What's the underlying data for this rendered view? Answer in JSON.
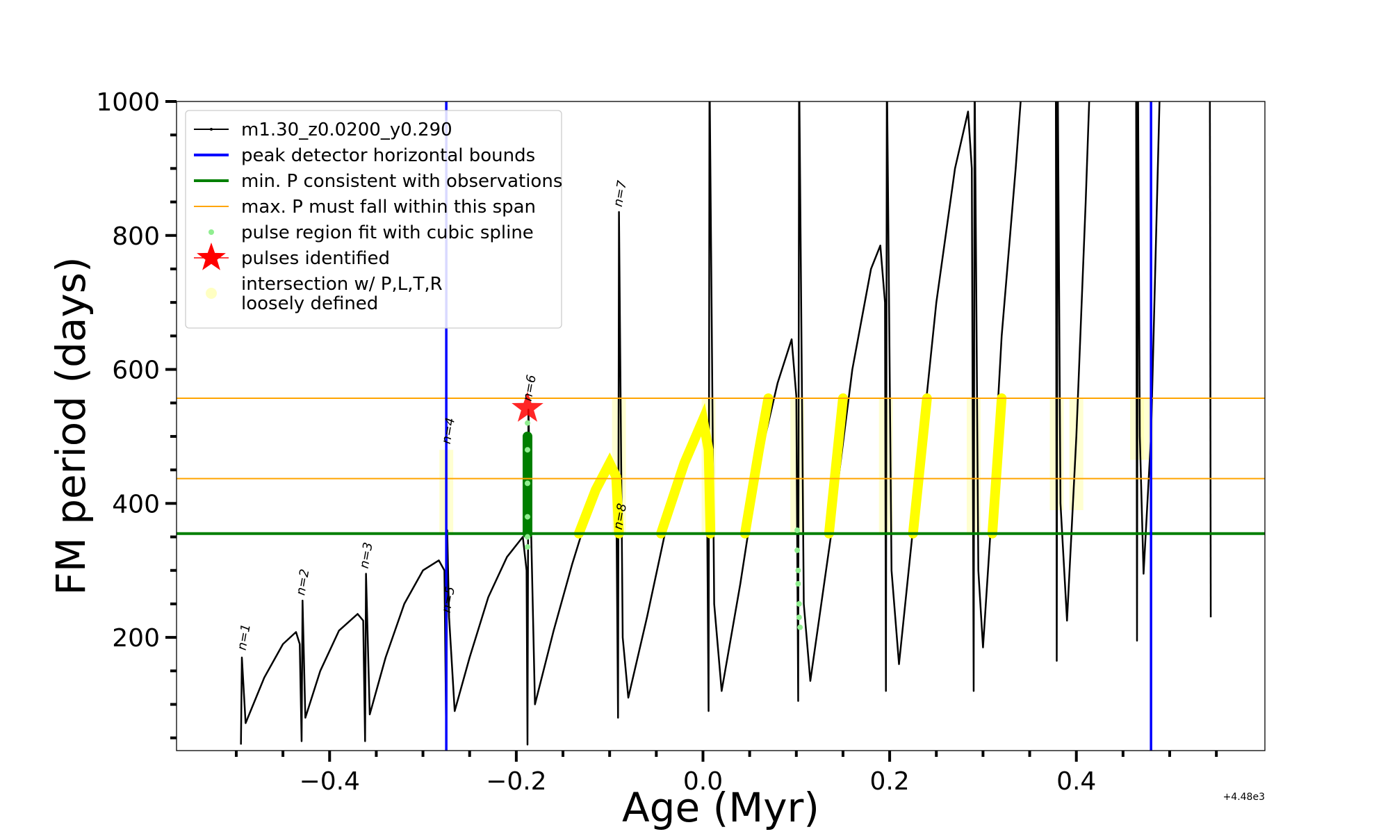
{
  "chart_data": {
    "type": "line",
    "xlabel": "Age (Myr)",
    "ylabel": "FM period (days)",
    "x_offset_label": "+4.48e3",
    "xlim": [
      -0.564,
      0.602
    ],
    "ylim": [
      31,
      1000
    ],
    "xticks": [
      {
        "value": -0.4,
        "label": "−0.4"
      },
      {
        "value": -0.2,
        "label": "−0.2"
      },
      {
        "value": 0,
        "label": "0.0"
      },
      0.2,
      0.4
    ],
    "yticks": [
      200,
      400,
      600,
      800,
      1000
    ],
    "xminorticks": [
      -0.5,
      -0.45,
      -0.35,
      -0.3,
      -0.25,
      -0.15,
      -0.1,
      -0.05,
      0.05,
      0.1,
      0.15,
      0.25,
      0.3,
      0.35,
      0.45,
      0.5,
      0.55
    ],
    "yminorticks": [
      50,
      100,
      150,
      250,
      300,
      350,
      450,
      500,
      550,
      650,
      700,
      750,
      850,
      900,
      950
    ],
    "legend": "upper left",
    "series": [
      {
        "name": "m1.30_z0.0200_y0.290",
        "kind": "line",
        "color": "#000000",
        "x": [
          -0.495,
          -0.494,
          -0.49,
          -0.47,
          -0.45,
          -0.436,
          -0.432,
          -0.43,
          -0.429,
          -0.426,
          -0.41,
          -0.39,
          -0.37,
          -0.364,
          -0.362,
          -0.361,
          -0.357,
          -0.34,
          -0.32,
          -0.3,
          -0.283,
          -0.277,
          -0.275,
          -0.274,
          -0.272,
          -0.266,
          -0.25,
          -0.23,
          -0.21,
          -0.193,
          -0.189,
          -0.188,
          -0.187,
          -0.18,
          -0.16,
          -0.14,
          -0.12,
          -0.1,
          -0.093,
          -0.091,
          -0.09,
          -0.086,
          -0.08,
          -0.06,
          -0.04,
          -0.02,
          -0.003,
          0.004,
          0.006,
          0.007,
          0.012,
          0.02,
          0.04,
          0.06,
          0.08,
          0.095,
          0.1,
          0.102,
          0.103,
          0.108,
          0.115,
          0.14,
          0.16,
          0.18,
          0.19,
          0.195,
          0.196,
          0.197,
          0.202,
          0.21,
          0.23,
          0.25,
          0.27,
          0.284,
          0.288,
          0.29,
          0.291,
          0.295,
          0.3,
          0.31,
          0.32,
          0.335,
          0.343,
          0.36,
          0.378,
          0.379,
          0.38,
          0.383,
          0.39,
          0.4,
          0.41,
          0.415,
          0.44,
          0.464,
          0.465,
          0.466,
          0.468,
          0.472,
          0.48,
          0.49,
          0.52,
          0.543,
          0.544
        ],
        "values": [
          40,
          170,
          72,
          140,
          190,
          208,
          190,
          45,
          255,
          80,
          150,
          210,
          235,
          225,
          45,
          295,
          85,
          170,
          250,
          300,
          315,
          300,
          45,
          360,
          230,
          90,
          170,
          260,
          320,
          350,
          300,
          40,
          540,
          100,
          210,
          310,
          400,
          460,
          440,
          80,
          835,
          200,
          110,
          230,
          360,
          460,
          525,
          470,
          90,
          1050,
          250,
          120,
          280,
          460,
          580,
          645,
          560,
          105,
          1050,
          250,
          135,
          380,
          600,
          750,
          785,
          700,
          120,
          1050,
          300,
          160,
          430,
          700,
          900,
          985,
          900,
          120,
          1050,
          300,
          185,
          400,
          650,
          900,
          1050,
          null,
          1050,
          165,
          1050,
          400,
          225,
          500,
          850,
          1050,
          null,
          1050,
          195,
          1050,
          500,
          295,
          500,
          1050,
          null,
          1050,
          230
        ]
      },
      {
        "name": "peak detector horizontal bounds",
        "kind": "vline",
        "color": "#0000ff",
        "x": [
          -0.275,
          0.48
        ]
      },
      {
        "name": "min. P consistent with observations",
        "kind": "hline",
        "color": "#007f00",
        "values": [
          355
        ]
      },
      {
        "name": "max. P must fall within this span",
        "kind": "hline",
        "color": "#ffa500",
        "values": [
          437,
          557
        ]
      },
      {
        "name": "pulse region fit with cubic spline",
        "kind": "scatter",
        "color": "#90ee90",
        "x": [
          -0.188,
          -0.188,
          -0.188,
          -0.188,
          -0.188,
          -0.188,
          0.101,
          0.101,
          0.102,
          0.102,
          0.103,
          0.103,
          0.104
        ],
        "values": [
          335,
          350,
          380,
          430,
          480,
          520,
          360,
          330,
          300,
          280,
          250,
          230,
          215
        ]
      },
      {
        "name": "pulses identified",
        "kind": "star",
        "color": "#ff0000",
        "x": [
          -0.188
        ],
        "values": [
          542
        ]
      },
      {
        "name": "intersection w/ P,L,T,R\nloosely defined",
        "kind": "band",
        "color": "#ffff99",
        "x": [
          -0.275,
          -0.275,
          -0.275,
          -0.09,
          -0.09,
          -0.09,
          0.006,
          0.006,
          0.006,
          0.101,
          0.101,
          0.101,
          0.196,
          0.196,
          0.196,
          0.29,
          0.29,
          0.29,
          0.379,
          0.379,
          0.379,
          0.4,
          0.4,
          0.4,
          0.465,
          0.465,
          0.465,
          0.475,
          0.475
        ],
        "values": [
          355,
          480,
          null,
          355,
          557,
          null,
          355,
          557,
          null,
          355,
          557,
          null,
          355,
          557,
          null,
          355,
          557,
          null,
          390,
          557,
          null,
          390,
          557,
          null,
          465,
          557,
          null,
          465,
          557
        ]
      },
      {
        "kind": "thick",
        "color": "#ffff00",
        "x": [
          -0.133,
          -0.115,
          -0.1,
          -0.093,
          -0.09,
          -0.09,
          -0.045,
          -0.02,
          0.0,
          0.006,
          0.008,
          0.008,
          0.045,
          0.06,
          0.07,
          0.07,
          0.135,
          0.15,
          0.15,
          0.225,
          0.24,
          0.24,
          0.31,
          0.32
        ],
        "values": [
          355,
          420,
          460,
          440,
          355,
          null,
          355,
          460,
          525,
          480,
          355,
          null,
          355,
          480,
          557,
          null,
          355,
          557,
          null,
          355,
          557,
          null,
          355,
          557
        ]
      },
      {
        "kind": "thick",
        "color": "#007f00",
        "x": [
          -0.188,
          -0.188
        ],
        "values": [
          355,
          500
        ]
      }
    ],
    "annotations": [
      {
        "text": "n=1",
        "x": -0.49,
        "y": 180
      },
      {
        "text": "n=2",
        "x": -0.427,
        "y": 262
      },
      {
        "text": "n=3",
        "x": -0.359,
        "y": 302
      },
      {
        "text": "n=4",
        "x": -0.271,
        "y": 488
      },
      {
        "text": "n=5",
        "x": -0.271,
        "y": 236
      },
      {
        "text": "n=6",
        "x": -0.184,
        "y": 552
      },
      {
        "text": "n=7",
        "x": -0.087,
        "y": 842
      },
      {
        "text": "n=8",
        "x": -0.087,
        "y": 360
      }
    ]
  }
}
